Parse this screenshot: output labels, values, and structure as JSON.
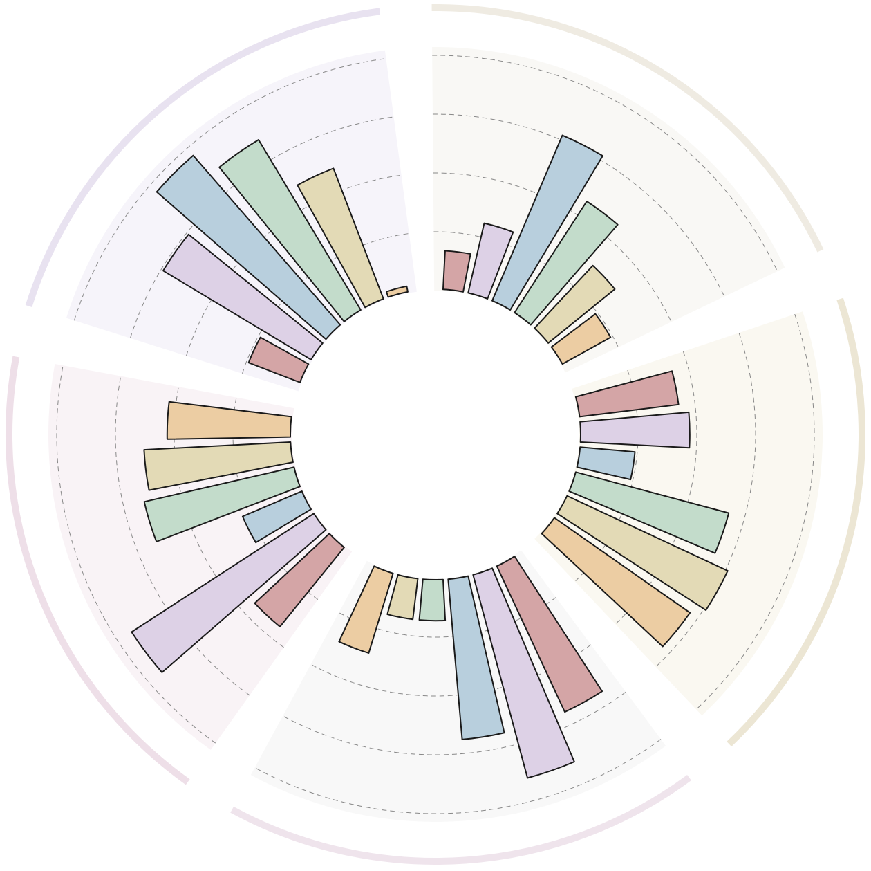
{
  "chart_data": {
    "type": "radial_bar",
    "categories": [
      null,
      null,
      null,
      null,
      null
    ],
    "group_fills": [
      "#f9f8f5",
      "#faf8f1",
      "#f8f8f8",
      "#f9f3f6",
      "#f6f4fa"
    ],
    "group_arc_colors": [
      "#efebe2",
      "#ece6d4",
      "#efe4ec",
      "#eedfe8",
      "#e8e2f0"
    ],
    "series": [
      {
        "color": "#d4a5a6",
        "values": [
          17,
          43,
          69,
          44,
          24
        ]
      },
      {
        "color": "#ddd1e6",
        "values": [
          31,
          47,
          90,
          93,
          74
        ]
      },
      {
        "color": "#b8cfdd",
        "values": [
          77,
          24,
          69,
          28,
          96
        ]
      },
      {
        "color": "#c3dccb",
        "values": [
          57,
          68,
          18,
          66,
          85
        ]
      },
      {
        "color": "#e3dab6",
        "values": [
          37,
          76,
          18,
          63,
          60
        ]
      },
      {
        "color": "#eccda3",
        "values": [
          24,
          71,
          36,
          53,
          3
        ]
      }
    ],
    "ylim": [
      0,
      100
    ],
    "yticks": [
      25,
      50,
      75,
      100
    ],
    "grid": true
  }
}
